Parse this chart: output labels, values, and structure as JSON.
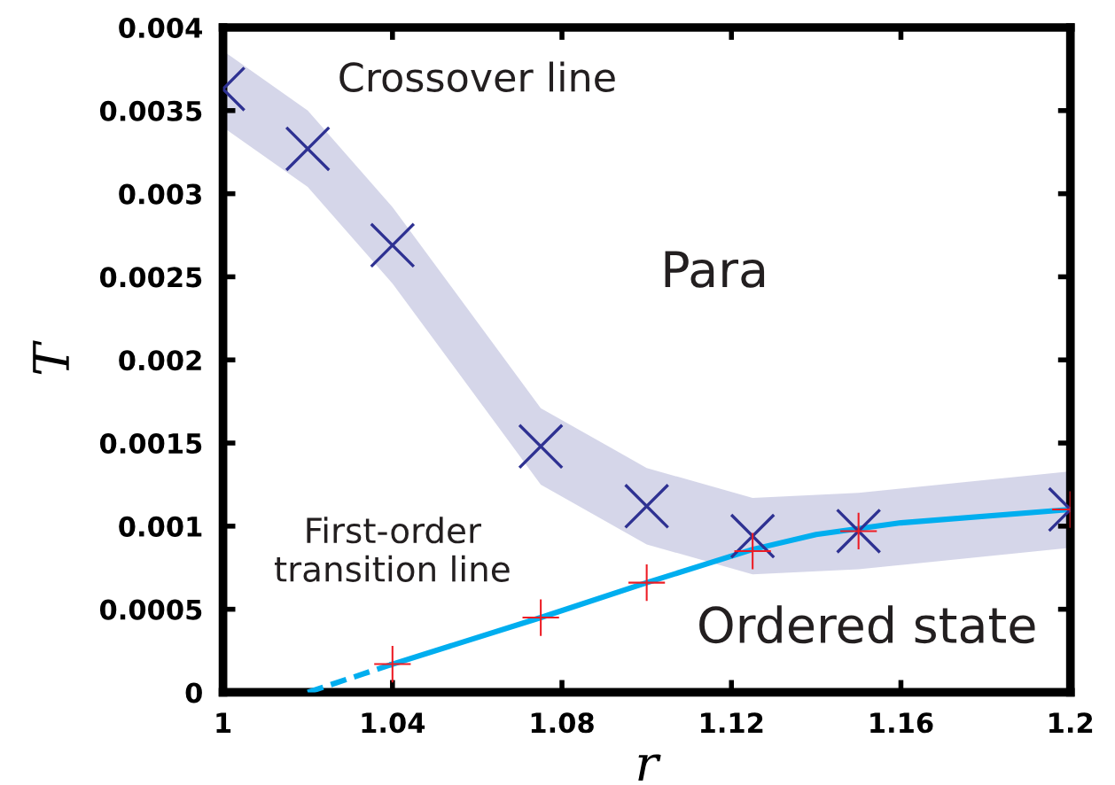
{
  "chart_data": {
    "type": "scatter",
    "xlabel": "r",
    "ylabel": "T",
    "xlim": [
      1,
      1.2
    ],
    "xticks": [
      1,
      1.04,
      1.08,
      1.12,
      1.16,
      1.2
    ],
    "ylim": [
      0,
      0.004
    ],
    "yticks": [
      0,
      0.0005,
      0.001,
      0.0015,
      0.002,
      0.0025,
      0.003,
      0.0035,
      0.004
    ],
    "grid": false,
    "legend": false,
    "annotations": [
      "Crossover line",
      "Para",
      "First-order\ntransition line",
      "Ordered state"
    ],
    "series": [
      {
        "marker": "cross",
        "color": "#2e3192",
        "x": [
          1.0,
          1.02,
          1.04,
          1.075,
          1.1,
          1.125,
          1.15,
          1.2
        ],
        "values": [
          0.00363,
          0.00327,
          0.00269,
          0.00148,
          0.00112,
          0.00094,
          0.00097,
          0.0011
        ],
        "lower": [
          0.0034,
          0.00304,
          0.00246,
          0.00125,
          0.00089,
          0.00071,
          0.00074,
          0.00087
        ],
        "upper": [
          0.00386,
          0.0035,
          0.00292,
          0.00171,
          0.00135,
          0.00117,
          0.0012,
          0.00133
        ]
      },
      {
        "type": "line",
        "line_style": "dashed",
        "color": "#00aeef",
        "x": [
          1.02,
          1.04
        ],
        "values": [
          0,
          0.00017
        ]
      },
      {
        "type": "line",
        "line_style": "solid",
        "color": "#00aeef",
        "x": [
          1.04,
          1.075,
          1.1,
          1.125,
          1.14,
          1.16,
          1.2
        ],
        "values": [
          0.00017,
          0.00045,
          0.00066,
          0.00086,
          0.00095,
          0.00102,
          0.0011
        ]
      },
      {
        "marker": "cross",
        "color": "#ed1c24",
        "x": [
          1.04,
          1.075,
          1.1,
          1.125,
          1.15,
          1.2
        ],
        "values": [
          0.00017,
          0.00045,
          0.00066,
          0.00085,
          0.00097,
          0.0011
        ]
      }
    ]
  }
}
